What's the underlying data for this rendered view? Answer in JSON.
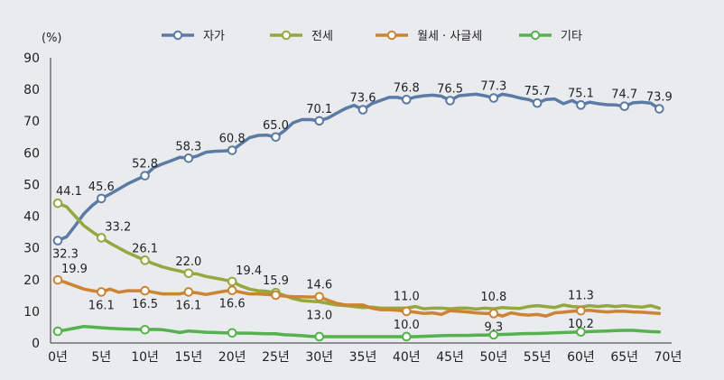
{
  "chart_data": {
    "type": "line",
    "unit_label": "(%)",
    "ylim": [
      0,
      90
    ],
    "y_ticks": [
      0,
      10,
      20,
      30,
      40,
      50,
      60,
      70,
      80,
      90
    ],
    "x_ticks": [
      {
        "value": 0,
        "label": "0년"
      },
      {
        "value": 5,
        "label": "5년"
      },
      {
        "value": 10,
        "label": "10년"
      },
      {
        "value": 15,
        "label": "15년"
      },
      {
        "value": 20,
        "label": "20년"
      },
      {
        "value": 25,
        "label": "25년"
      },
      {
        "value": 30,
        "label": "30년"
      },
      {
        "value": 35,
        "label": "35년"
      },
      {
        "value": 40,
        "label": "40년"
      },
      {
        "value": 45,
        "label": "45년"
      },
      {
        "value": 50,
        "label": "50년"
      },
      {
        "value": 55,
        "label": "55년"
      },
      {
        "value": 60,
        "label": "60년"
      },
      {
        "value": 65,
        "label": "65년"
      },
      {
        "value": 70,
        "label": "70년"
      }
    ],
    "xlim": [
      0,
      70
    ],
    "grid": false,
    "legend_position": "top",
    "series": [
      {
        "name": "자가",
        "color": "#5b7ba5",
        "x": [
          0,
          1,
          2,
          3,
          4,
          5,
          6,
          7,
          8,
          9,
          10,
          11,
          12,
          13,
          14,
          15,
          16,
          17,
          18,
          19,
          20,
          21,
          22,
          23,
          24,
          25,
          26,
          27,
          28,
          29,
          30,
          31,
          32,
          33,
          34,
          35,
          36,
          37,
          38,
          39,
          40,
          41,
          42,
          43,
          44,
          45,
          46,
          47,
          48,
          49,
          50,
          51,
          52,
          53,
          54,
          55,
          56,
          57,
          58,
          59,
          60,
          61,
          62,
          63,
          64,
          65,
          66,
          67,
          68,
          69
        ],
        "y": [
          32.3,
          33.5,
          37,
          40.8,
          43.5,
          45.6,
          47,
          48.6,
          50.2,
          51.5,
          52.8,
          55.3,
          56.5,
          57.5,
          58.6,
          58.3,
          59,
          60.2,
          60.5,
          60.6,
          60.8,
          62.8,
          64.8,
          65.5,
          65.6,
          65.0,
          67,
          69.5,
          70.5,
          70.5,
          70.1,
          71,
          72.5,
          74,
          75,
          73.6,
          75.5,
          76.5,
          77.5,
          77.5,
          76.8,
          77.6,
          78,
          78.2,
          77.9,
          76.5,
          78,
          78.3,
          78.5,
          78,
          77.3,
          78.5,
          78,
          77.3,
          76.8,
          75.7,
          76.8,
          77,
          75.5,
          76.5,
          75.1,
          76,
          75.5,
          75.2,
          75.1,
          74.7,
          75.8,
          76,
          75.7,
          73.9
        ],
        "markers": [
          0,
          5,
          10,
          15,
          20,
          25,
          30,
          35,
          40,
          45,
          50,
          55,
          60,
          65,
          69
        ]
      },
      {
        "name": "전세",
        "color": "#94a83f",
        "x": [
          0,
          1,
          2,
          3,
          4,
          5,
          6,
          7,
          8,
          9,
          10,
          11,
          12,
          13,
          14,
          15,
          16,
          17,
          18,
          19,
          20,
          21,
          22,
          23,
          24,
          25,
          26,
          27,
          28,
          29,
          30,
          31,
          32,
          33,
          34,
          35,
          36,
          37,
          38,
          39,
          40,
          41,
          42,
          43,
          44,
          45,
          46,
          47,
          48,
          49,
          50,
          51,
          52,
          53,
          54,
          55,
          56,
          57,
          58,
          59,
          60,
          61,
          62,
          63,
          64,
          65,
          66,
          67,
          68,
          69
        ],
        "y": [
          44.1,
          43,
          40,
          37,
          35,
          33.2,
          31.5,
          30,
          28.5,
          27.3,
          26.1,
          25,
          24,
          23.3,
          22.7,
          22.0,
          21.8,
          21,
          20.5,
          20,
          19.4,
          18,
          17,
          16.5,
          16.3,
          15.9,
          15,
          14,
          13.4,
          13.2,
          13.0,
          12.5,
          12,
          11.8,
          11.5,
          11.2,
          11.3,
          11,
          11,
          11,
          11.0,
          11.5,
          10.8,
          11,
          11,
          10.8,
          11,
          11,
          10.7,
          11,
          10.8,
          11.2,
          11,
          10.9,
          11.5,
          11.8,
          11.5,
          11.2,
          12,
          11.5,
          11.3,
          11.8,
          11.5,
          11.8,
          11.5,
          11.8,
          11.5,
          11.3,
          11.8,
          11
        ]
      },
      {
        "name": "월세 · 사글세",
        "color": "#cc8432",
        "x": [
          0,
          1,
          2,
          3,
          4,
          5,
          6,
          7,
          8,
          9,
          10,
          11,
          12,
          13,
          14,
          15,
          16,
          17,
          18,
          19,
          20,
          21,
          22,
          23,
          24,
          25,
          26,
          27,
          28,
          29,
          30,
          31,
          32,
          33,
          34,
          35,
          36,
          37,
          38,
          39,
          40,
          41,
          42,
          43,
          44,
          45,
          46,
          47,
          48,
          49,
          50,
          51,
          52,
          53,
          54,
          55,
          56,
          57,
          58,
          59,
          60,
          61,
          62,
          63,
          64,
          65,
          66,
          67,
          68,
          69
        ],
        "y": [
          19.9,
          19,
          18,
          17,
          16.5,
          16.1,
          17,
          16,
          16.5,
          16.5,
          16.5,
          16,
          15.5,
          15.5,
          15.5,
          16.1,
          15.8,
          15.3,
          15.8,
          16.3,
          16.6,
          16,
          15.5,
          15.5,
          15.3,
          15.1,
          14.8,
          14.6,
          14.6,
          14.5,
          14.6,
          13.5,
          12.5,
          12,
          12,
          12,
          11,
          10.5,
          10.5,
          10.3,
          10.0,
          9.7,
          9.3,
          9.5,
          9,
          10.2,
          10,
          9.8,
          9.5,
          9.3,
          9.3,
          8.5,
          9.5,
          9,
          8.8,
          9,
          8.5,
          9.5,
          9.7,
          10,
          10.2,
          10.3,
          10,
          9.8,
          10,
          10,
          9.8,
          9.7,
          9.5,
          9.3
        ]
      },
      {
        "name": "기타",
        "color": "#55b24d",
        "x": [
          0,
          1,
          2,
          3,
          4,
          5,
          6,
          7,
          8,
          9,
          10,
          11,
          12,
          13,
          14,
          15,
          16,
          17,
          18,
          19,
          20,
          21,
          22,
          23,
          24,
          25,
          26,
          27,
          28,
          29,
          30,
          31,
          32,
          33,
          34,
          35,
          36,
          37,
          38,
          39,
          40,
          41,
          42,
          43,
          44,
          45,
          46,
          47,
          48,
          49,
          50,
          51,
          52,
          53,
          54,
          55,
          56,
          57,
          58,
          59,
          60,
          61,
          62,
          63,
          64,
          65,
          66,
          67,
          68,
          69
        ],
        "y": [
          3.7,
          4.2,
          4.7,
          5.2,
          5,
          4.8,
          4.6,
          4.5,
          4.4,
          4.3,
          4.2,
          4.3,
          4.2,
          3.8,
          3.3,
          3.8,
          3.6,
          3.4,
          3.3,
          3.2,
          3.2,
          3.1,
          3.1,
          3.0,
          2.9,
          2.9,
          2.6,
          2.5,
          2.3,
          2.1,
          2.0,
          2.0,
          2.0,
          2.0,
          2.0,
          2.0,
          2.0,
          2.0,
          2.0,
          2.0,
          2.0,
          2.0,
          2.1,
          2.2,
          2.3,
          2.4,
          2.4,
          2.4,
          2.5,
          2.5,
          2.6,
          2.7,
          2.8,
          2.9,
          3.0,
          3.0,
          3.1,
          3.2,
          3.3,
          3.4,
          3.5,
          3.6,
          3.7,
          3.8,
          3.9,
          4.0,
          4.0,
          3.8,
          3.6,
          3.5
        ]
      }
    ],
    "data_labels": [
      {
        "series": 0,
        "x": 0,
        "y": 32.3,
        "text": "32.3",
        "pos": "below"
      },
      {
        "series": 0,
        "x": 5,
        "y": 45.6,
        "text": "45.6",
        "pos": "above"
      },
      {
        "series": 0,
        "x": 10,
        "y": 52.8,
        "text": "52.8",
        "pos": "above"
      },
      {
        "series": 0,
        "x": 15,
        "y": 58.3,
        "text": "58.3",
        "pos": "above"
      },
      {
        "series": 0,
        "x": 20,
        "y": 60.8,
        "text": "60.8",
        "pos": "above"
      },
      {
        "series": 0,
        "x": 25,
        "y": 65.0,
        "text": "65.0",
        "pos": "above"
      },
      {
        "series": 0,
        "x": 30,
        "y": 70.1,
        "text": "70.1",
        "pos": "above"
      },
      {
        "series": 0,
        "x": 35,
        "y": 73.6,
        "text": "73.6",
        "pos": "above"
      },
      {
        "series": 0,
        "x": 40,
        "y": 76.8,
        "text": "76.8",
        "pos": "above"
      },
      {
        "series": 0,
        "x": 45,
        "y": 76.5,
        "text": "76.5",
        "pos": "above"
      },
      {
        "series": 0,
        "x": 50,
        "y": 77.3,
        "text": "77.3",
        "pos": "above"
      },
      {
        "series": 0,
        "x": 55,
        "y": 75.7,
        "text": "75.7",
        "pos": "above"
      },
      {
        "series": 0,
        "x": 60,
        "y": 75.1,
        "text": "75.1",
        "pos": "above"
      },
      {
        "series": 0,
        "x": 65,
        "y": 74.7,
        "text": "74.7",
        "pos": "above"
      },
      {
        "series": 0,
        "x": 69,
        "y": 73.9,
        "text": "73.9",
        "pos": "above"
      },
      {
        "series": 1,
        "x": 0,
        "y": 44.1,
        "text": "44.1",
        "pos": "above"
      },
      {
        "series": 1,
        "x": 5,
        "y": 33.2,
        "text": "33.2",
        "pos": "above-right"
      },
      {
        "series": 1,
        "x": 10,
        "y": 26.1,
        "text": "26.1",
        "pos": "above"
      },
      {
        "series": 1,
        "x": 15,
        "y": 22.0,
        "text": "22.0",
        "pos": "above"
      },
      {
        "series": 1,
        "x": 20,
        "y": 19.4,
        "text": "19.4",
        "pos": "above-right"
      },
      {
        "series": 1,
        "x": 25,
        "y": 15.9,
        "text": "15.9",
        "pos": "above"
      },
      {
        "series": 1,
        "x": 30,
        "y": 13.0,
        "text": "13.0",
        "pos": "below"
      },
      {
        "series": 1,
        "x": 40,
        "y": 11.0,
        "text": "11.0",
        "pos": "above"
      },
      {
        "series": 1,
        "x": 50,
        "y": 10.8,
        "text": "10.8",
        "pos": "above"
      },
      {
        "series": 1,
        "x": 60,
        "y": 11.3,
        "text": "11.3",
        "pos": "above"
      },
      {
        "series": 2,
        "x": 0,
        "y": 19.9,
        "text": "19.9",
        "pos": "above-right"
      },
      {
        "series": 2,
        "x": 5,
        "y": 16.1,
        "text": "16.1",
        "pos": "below"
      },
      {
        "series": 2,
        "x": 10,
        "y": 16.5,
        "text": "16.5",
        "pos": "below"
      },
      {
        "series": 2,
        "x": 15,
        "y": 16.1,
        "text": "16.1",
        "pos": "below"
      },
      {
        "series": 2,
        "x": 20,
        "y": 16.6,
        "text": "16.6",
        "pos": "below"
      },
      {
        "series": 2,
        "x": 30,
        "y": 14.6,
        "text": "14.6",
        "pos": "above"
      },
      {
        "series": 2,
        "x": 40,
        "y": 10.0,
        "text": "10.0",
        "pos": "below"
      },
      {
        "series": 2,
        "x": 50,
        "y": 9.3,
        "text": "9.3",
        "pos": "below"
      },
      {
        "series": 2,
        "x": 60,
        "y": 10.2,
        "text": "10.2",
        "pos": "below"
      }
    ],
    "markers": [
      {
        "series": 1,
        "x": [
          0,
          5,
          10,
          15,
          20,
          25
        ]
      },
      {
        "series": 2,
        "x": [
          0,
          5,
          10,
          15,
          20,
          25,
          30,
          40,
          50,
          60
        ]
      },
      {
        "series": 3,
        "x": [
          0,
          10,
          20,
          30,
          40,
          50,
          60
        ]
      }
    ]
  }
}
